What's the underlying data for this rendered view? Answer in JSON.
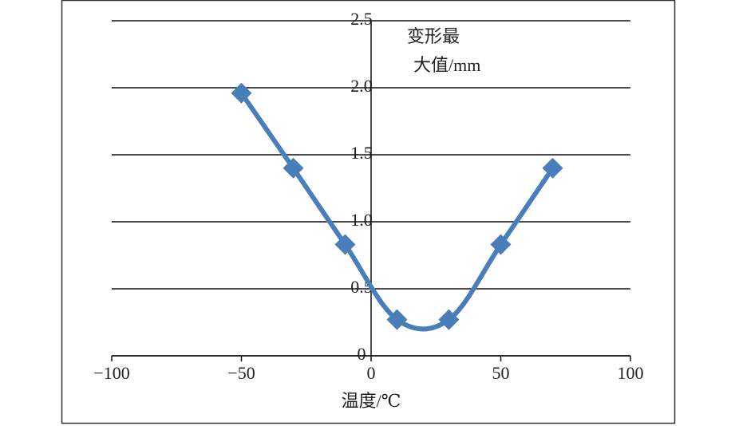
{
  "chart_data": {
    "type": "line",
    "x_label": "温度/℃",
    "y_label": [
      "变形最",
      "大值/mm"
    ],
    "x": [
      -50,
      -30,
      -10,
      10,
      30,
      50,
      70
    ],
    "series": [
      {
        "color": "#4a7ebb",
        "values": [
          1.96,
          1.4,
          0.83,
          0.27,
          0.27,
          0.83,
          1.4
        ]
      }
    ],
    "xlim": [
      -100,
      100
    ],
    "xticks": [
      {
        "value": -100,
        "label": "−100"
      },
      {
        "value": -50,
        "label": "−50"
      },
      0,
      50,
      100
    ],
    "ylim": [
      0,
      2.5
    ],
    "yticks": [
      0,
      0.5,
      {
        "value": 1,
        "label": "1.0"
      },
      1.5,
      {
        "value": 2,
        "label": "2.0"
      },
      2.5
    ],
    "grid": true,
    "smooth": true
  }
}
